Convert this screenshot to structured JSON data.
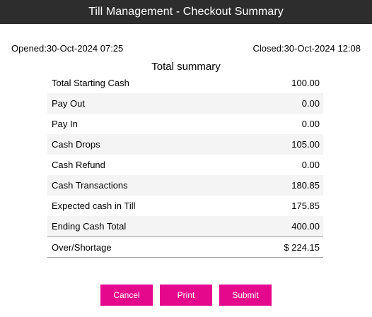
{
  "window": {
    "title": "Till Management - Checkout Summary"
  },
  "session": {
    "opened": "Opened:30-Oct-2024 07:25",
    "closed": "Closed:30-Oct-2024 12:08"
  },
  "summary": {
    "heading": "Total summary",
    "rows": [
      {
        "label": "Total Starting Cash",
        "value": "100.00"
      },
      {
        "label": "Pay Out",
        "value": "0.00"
      },
      {
        "label": "Pay In",
        "value": "0.00"
      },
      {
        "label": "Cash Drops",
        "value": "105.00"
      },
      {
        "label": "Cash Refund",
        "value": "0.00"
      },
      {
        "label": "Cash Transactions",
        "value": "180.85"
      },
      {
        "label": "Expected cash in Till",
        "value": "175.85"
      },
      {
        "label": "Ending Cash Total",
        "value": "400.00"
      }
    ],
    "total": {
      "label": "Over/Shortage",
      "value": "$ 224.15"
    }
  },
  "actions": {
    "cancel_label": "Cancel",
    "print_label": "Print",
    "submit_label": "Submit"
  },
  "colors": {
    "titlebar": "#2d2d2d",
    "accent": "#e5078c",
    "row_shade": "#f4f4f4"
  }
}
